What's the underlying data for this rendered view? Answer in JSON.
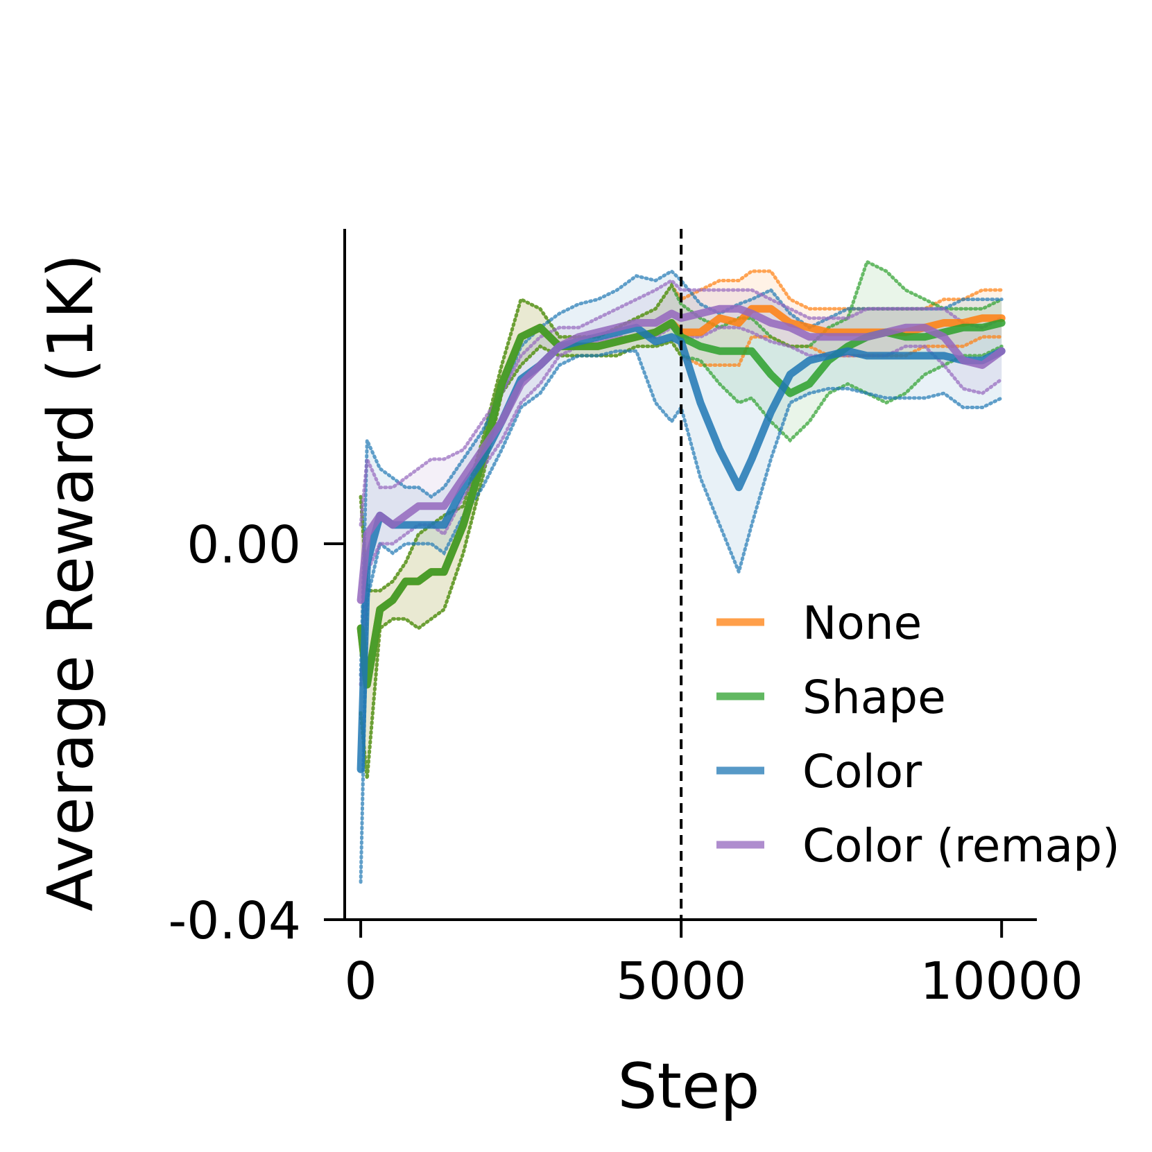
{
  "chart_data": {
    "type": "line",
    "title": "",
    "xlabel": "Step",
    "ylabel": "Average Reward (1K)",
    "xlim": [
      -250,
      10550
    ],
    "ylim": [
      -0.04,
      0.0335
    ],
    "xticks": [
      0,
      5000,
      10000
    ],
    "xtick_labels": [
      "0",
      "5000",
      "10000"
    ],
    "yticks": [
      0.0,
      -0.04
    ],
    "ytick_labels": [
      "0.00",
      "-0.04"
    ],
    "grid": false,
    "legend_position": "lower-right",
    "vline": {
      "x": 5000,
      "style": "dashed",
      "color": "#000000"
    },
    "x": [
      0,
      100,
      300,
      500,
      700,
      900,
      1100,
      1300,
      1600,
      1900,
      2200,
      2500,
      2800,
      3100,
      3400,
      3700,
      4000,
      4300,
      4600,
      4850,
      5000,
      5300,
      5600,
      5900,
      6100,
      6400,
      6700,
      7000,
      7300,
      7600,
      7900,
      8200,
      8500,
      8800,
      9100,
      9400,
      9700,
      10000
    ],
    "series": [
      {
        "name": "None",
        "color": "#ff7f0e",
        "values": [
          -0.009,
          -0.015,
          -0.007,
          -0.006,
          -0.004,
          -0.004,
          -0.003,
          -0.003,
          0.002,
          0.009,
          0.017,
          0.022,
          0.023,
          0.021,
          0.021,
          0.021,
          0.0215,
          0.022,
          0.0225,
          0.0235,
          0.0225,
          0.0225,
          0.024,
          0.0235,
          0.025,
          0.025,
          0.0235,
          0.023,
          0.0225,
          0.0225,
          0.0225,
          0.0225,
          0.0225,
          0.023,
          0.0235,
          0.0235,
          0.024,
          0.024
        ],
        "lower": [
          -0.018,
          -0.025,
          -0.009,
          -0.008,
          -0.008,
          -0.009,
          -0.008,
          -0.007,
          -0.001,
          0.007,
          0.016,
          0.019,
          0.021,
          0.02,
          0.02,
          0.02,
          0.02,
          0.021,
          0.021,
          0.0215,
          0.02,
          0.019,
          0.019,
          0.019,
          0.022,
          0.022,
          0.021,
          0.021,
          0.02,
          0.02,
          0.02,
          0.02,
          0.02,
          0.021,
          0.021,
          0.021,
          0.022,
          0.022
        ],
        "upper": [
          0.005,
          -0.005,
          -0.005,
          -0.004,
          -0.002,
          0.001,
          0.002,
          0.003,
          0.004,
          0.011,
          0.019,
          0.026,
          0.025,
          0.022,
          0.022,
          0.022,
          0.023,
          0.024,
          0.025,
          0.0275,
          0.026,
          0.027,
          0.028,
          0.028,
          0.029,
          0.029,
          0.026,
          0.025,
          0.025,
          0.025,
          0.025,
          0.025,
          0.025,
          0.025,
          0.026,
          0.026,
          0.027,
          0.027
        ]
      },
      {
        "name": "Shape",
        "color": "#2ca02c",
        "values": [
          -0.009,
          -0.015,
          -0.007,
          -0.006,
          -0.004,
          -0.004,
          -0.003,
          -0.003,
          0.002,
          0.009,
          0.017,
          0.022,
          0.023,
          0.021,
          0.021,
          0.021,
          0.0215,
          0.022,
          0.0225,
          0.0235,
          0.022,
          0.021,
          0.0205,
          0.0205,
          0.0205,
          0.018,
          0.016,
          0.017,
          0.0195,
          0.021,
          0.022,
          0.0225,
          0.022,
          0.022,
          0.0225,
          0.023,
          0.023,
          0.0235
        ],
        "lower": [
          -0.018,
          -0.025,
          -0.009,
          -0.008,
          -0.008,
          -0.009,
          -0.008,
          -0.007,
          -0.001,
          0.007,
          0.016,
          0.019,
          0.021,
          0.02,
          0.02,
          0.02,
          0.02,
          0.021,
          0.021,
          0.0215,
          0.02,
          0.0195,
          0.017,
          0.015,
          0.0155,
          0.013,
          0.011,
          0.013,
          0.016,
          0.017,
          0.016,
          0.015,
          0.016,
          0.018,
          0.019,
          0.02,
          0.02,
          0.021
        ],
        "upper": [
          0.005,
          -0.005,
          -0.005,
          -0.004,
          -0.002,
          0.001,
          0.002,
          0.003,
          0.004,
          0.011,
          0.019,
          0.026,
          0.025,
          0.022,
          0.022,
          0.022,
          0.023,
          0.024,
          0.025,
          0.0275,
          0.0255,
          0.024,
          0.023,
          0.024,
          0.024,
          0.022,
          0.021,
          0.021,
          0.023,
          0.024,
          0.03,
          0.029,
          0.027,
          0.026,
          0.025,
          0.025,
          0.025,
          0.026
        ]
      },
      {
        "name": "Color",
        "color": "#1f77b4",
        "values": [
          -0.024,
          -0.002,
          0.003,
          0.002,
          0.002,
          0.002,
          0.002,
          0.002,
          0.006,
          0.009,
          0.013,
          0.0175,
          0.019,
          0.021,
          0.0215,
          0.022,
          0.0225,
          0.023,
          0.0215,
          0.022,
          0.0215,
          0.015,
          0.01,
          0.006,
          0.009,
          0.014,
          0.018,
          0.0195,
          0.02,
          0.0205,
          0.02,
          0.02,
          0.02,
          0.02,
          0.02,
          0.0195,
          0.0195,
          0.0205
        ],
        "lower": [
          -0.036,
          -0.006,
          0.0,
          -0.001,
          0.0,
          0.0,
          0.0,
          -0.001,
          0.003,
          0.006,
          0.01,
          0.0145,
          0.016,
          0.019,
          0.02,
          0.02,
          0.0205,
          0.0205,
          0.015,
          0.013,
          0.0145,
          0.007,
          0.002,
          -0.003,
          0.002,
          0.009,
          0.015,
          0.016,
          0.0165,
          0.0165,
          0.016,
          0.0155,
          0.0155,
          0.0155,
          0.016,
          0.0145,
          0.0145,
          0.0155
        ],
        "upper": [
          -0.014,
          0.011,
          0.008,
          0.007,
          0.006,
          0.006,
          0.005,
          0.006,
          0.009,
          0.012,
          0.016,
          0.021,
          0.023,
          0.0245,
          0.0255,
          0.026,
          0.027,
          0.0285,
          0.028,
          0.029,
          0.028,
          0.0255,
          0.0245,
          0.0255,
          0.026,
          0.027,
          0.0245,
          0.023,
          0.024,
          0.025,
          0.025,
          0.025,
          0.025,
          0.025,
          0.025,
          0.026,
          0.026,
          0.026
        ]
      },
      {
        "name": "Color (remap)",
        "color": "#9467bd",
        "values": [
          -0.006,
          0.001,
          0.003,
          0.002,
          0.003,
          0.004,
          0.004,
          0.004,
          0.007,
          0.01,
          0.013,
          0.017,
          0.019,
          0.021,
          0.022,
          0.0225,
          0.023,
          0.0235,
          0.0235,
          0.0245,
          0.024,
          0.0245,
          0.025,
          0.025,
          0.0245,
          0.0235,
          0.023,
          0.022,
          0.022,
          0.022,
          0.022,
          0.0225,
          0.023,
          0.023,
          0.022,
          0.0195,
          0.019,
          0.0205
        ],
        "lower": [
          -0.015,
          -0.003,
          0.0,
          0.0,
          0.001,
          0.002,
          0.002,
          0.001,
          0.005,
          0.008,
          0.011,
          0.015,
          0.017,
          0.02,
          0.021,
          0.0215,
          0.022,
          0.022,
          0.022,
          0.023,
          0.022,
          0.022,
          0.023,
          0.023,
          0.0225,
          0.0215,
          0.021,
          0.02,
          0.02,
          0.02,
          0.02,
          0.02,
          0.021,
          0.021,
          0.019,
          0.0165,
          0.016,
          0.0175
        ],
        "upper": [
          0.002,
          0.009,
          0.006,
          0.006,
          0.007,
          0.008,
          0.009,
          0.009,
          0.01,
          0.013,
          0.016,
          0.02,
          0.022,
          0.023,
          0.023,
          0.024,
          0.025,
          0.026,
          0.027,
          0.028,
          0.027,
          0.027,
          0.027,
          0.027,
          0.027,
          0.026,
          0.025,
          0.024,
          0.024,
          0.024,
          0.025,
          0.025,
          0.025,
          0.025,
          0.025,
          0.0235,
          0.023,
          0.024
        ]
      }
    ]
  }
}
